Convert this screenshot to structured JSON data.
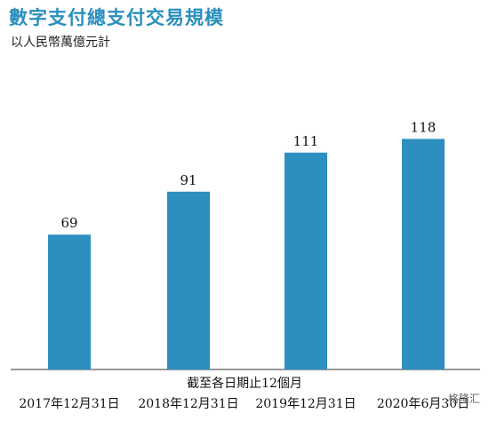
{
  "chart_data": {
    "type": "bar",
    "title": "數字支付總支付交易規模",
    "subtitle": "以人民幣萬億元計",
    "categories": [
      "2017年12月31日",
      "2018年12月31日",
      "2019年12月31日",
      "2020年6月30日"
    ],
    "values": [
      69,
      91,
      111,
      118
    ],
    "xlabel": "截至各日期止12個月",
    "ylabel": "",
    "ylim": [
      0,
      133
    ],
    "grid": false,
    "bar_color": "#2c8fc0"
  },
  "watermark": "格隆汇"
}
